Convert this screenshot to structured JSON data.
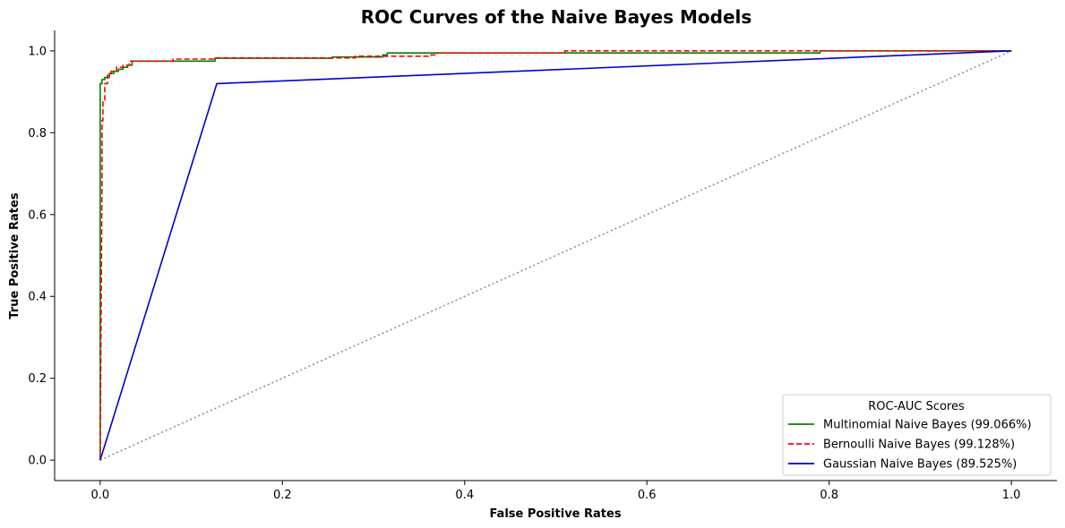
{
  "chart_data": {
    "type": "line",
    "title": "ROC Curves of the Naive Bayes Models",
    "xlabel": "False Positive Rates",
    "ylabel": "True Positive Rates",
    "xlim": [
      -0.05,
      1.05
    ],
    "ylim": [
      -0.05,
      1.05
    ],
    "xticks": [
      "0.0",
      "0.2",
      "0.4",
      "0.6",
      "0.8",
      "1.0"
    ],
    "yticks": [
      "0.0",
      "0.2",
      "0.4",
      "0.6",
      "0.8",
      "1.0"
    ],
    "grid": false,
    "legend": {
      "title": "ROC-AUC Scores",
      "placement": "lower-right"
    },
    "series": [
      {
        "name": "Multinomial Naive Bayes (99.066%)",
        "color": "#008000",
        "dash": "solid",
        "x": [
          0.0,
          0.0,
          0.002,
          0.002,
          0.005,
          0.005,
          0.01,
          0.01,
          0.015,
          0.015,
          0.02,
          0.02,
          0.025,
          0.025,
          0.03,
          0.03,
          0.035,
          0.035,
          0.126,
          0.126,
          0.255,
          0.255,
          0.31,
          0.31,
          0.315,
          0.315,
          0.79,
          0.79,
          1.0
        ],
        "y": [
          0.0,
          0.92,
          0.92,
          0.93,
          0.93,
          0.935,
          0.935,
          0.945,
          0.945,
          0.95,
          0.95,
          0.955,
          0.955,
          0.96,
          0.96,
          0.965,
          0.965,
          0.975,
          0.975,
          0.982,
          0.982,
          0.985,
          0.985,
          0.99,
          0.99,
          0.995,
          0.995,
          1.0,
          1.0
        ]
      },
      {
        "name": "Bernoulli Naive Bayes (99.128%)",
        "color": "#ff0000",
        "dash": "dashed",
        "x": [
          0.0,
          0.002,
          0.002,
          0.003,
          0.003,
          0.005,
          0.005,
          0.008,
          0.008,
          0.012,
          0.012,
          0.018,
          0.018,
          0.025,
          0.025,
          0.032,
          0.032,
          0.08,
          0.08,
          0.125,
          0.125,
          0.28,
          0.28,
          0.36,
          0.36,
          0.37,
          0.37,
          0.51,
          0.51,
          1.0
        ],
        "y": [
          0.0,
          0.7,
          0.83,
          0.83,
          0.88,
          0.88,
          0.92,
          0.92,
          0.94,
          0.94,
          0.95,
          0.95,
          0.96,
          0.96,
          0.965,
          0.965,
          0.975,
          0.975,
          0.98,
          0.98,
          0.983,
          0.983,
          0.987,
          0.987,
          0.99,
          0.99,
          0.995,
          0.995,
          1.0,
          1.0
        ]
      },
      {
        "name": "Gaussian Naive Bayes (89.525%)",
        "color": "#0000cc",
        "dash": "solid",
        "x": [
          0.0,
          0.128,
          1.0
        ],
        "y": [
          0.0,
          0.92,
          1.0
        ]
      }
    ],
    "reference_line": {
      "color": "#888888",
      "dash": "dotted",
      "x": [
        0.0,
        1.0
      ],
      "y": [
        0.0,
        1.0
      ]
    }
  }
}
